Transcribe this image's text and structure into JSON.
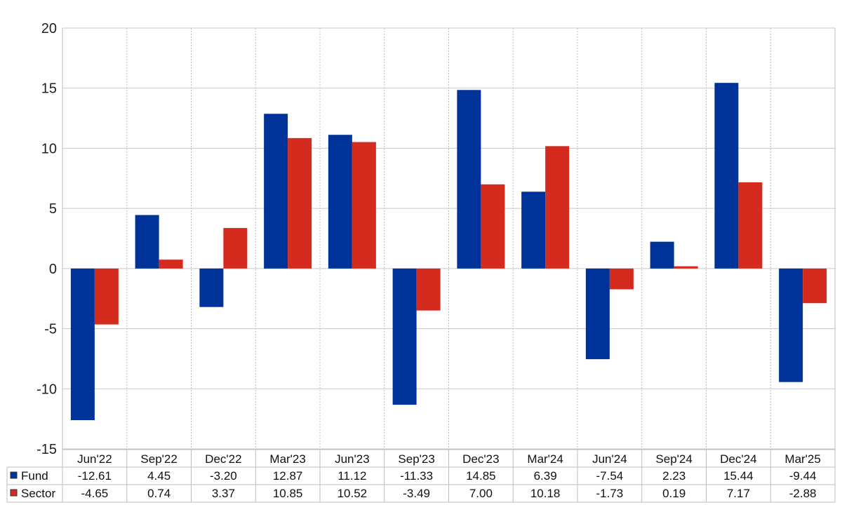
{
  "chart_data": {
    "type": "bar",
    "categories": [
      "Jun'22",
      "Sep'22",
      "Dec'22",
      "Mar'23",
      "Jun'23",
      "Sep'23",
      "Dec'23",
      "Mar'24",
      "Jun'24",
      "Sep'24",
      "Dec'24",
      "Mar'25"
    ],
    "series": [
      {
        "name": "Fund",
        "color": "#003399",
        "values": [
          -12.61,
          4.45,
          -3.2,
          12.87,
          11.12,
          -11.33,
          14.85,
          6.39,
          -7.54,
          2.23,
          15.44,
          -9.44
        ],
        "labels": [
          "-12.61",
          "4.45",
          "-3.20",
          "12.87",
          "11.12",
          "-11.33",
          "14.85",
          "6.39",
          "-7.54",
          "2.23",
          "15.44",
          "-9.44"
        ]
      },
      {
        "name": "Sector",
        "color": "#d52b1e",
        "values": [
          -4.65,
          0.74,
          3.37,
          10.85,
          10.52,
          -3.49,
          7.0,
          10.18,
          -1.73,
          0.19,
          7.17,
          -2.88
        ],
        "labels": [
          "-4.65",
          "0.74",
          "3.37",
          "10.85",
          "10.52",
          "-3.49",
          "7.00",
          "10.18",
          "-1.73",
          "0.19",
          "7.17",
          "-2.88"
        ]
      }
    ],
    "ylim": [
      -15,
      20
    ],
    "yticks": [
      20,
      15,
      10,
      5,
      0,
      -5,
      -10,
      -15
    ],
    "grid": true,
    "negative_label_color": "#ff0000",
    "legend": "table-left"
  }
}
